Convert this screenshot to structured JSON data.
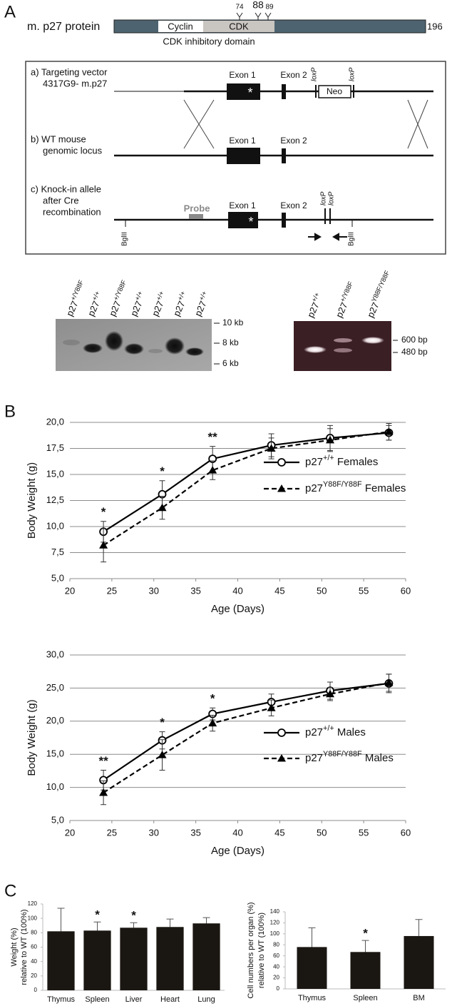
{
  "panel_labels": [
    "A",
    "B",
    "C"
  ],
  "protein": {
    "label": "m. p27 protein",
    "length": "196",
    "domains": [
      "Cyclin",
      "CDK"
    ],
    "domain_caption": "CDK inhibitory domain",
    "sites": [
      "74",
      "88",
      "89"
    ]
  },
  "constructs": {
    "rows": [
      {
        "label": [
          "a) Targeting vector",
          "4317G9- m.p27"
        ]
      },
      {
        "label": [
          "b)  WT mouse",
          "genomic locus"
        ]
      },
      {
        "label": [
          "c) Knock-in allele",
          "after Cre",
          "recombination"
        ]
      }
    ],
    "exon_labels": [
      "Exon 1",
      "Exon 2"
    ],
    "loxp": "loxP",
    "neo": "Neo",
    "probe": "Probe",
    "site": "BglII",
    "asterisk": "*"
  },
  "southern": {
    "lanes": [
      "p27+/Y88F",
      "p27+/+",
      "p27+/Y88F",
      "p27+/+",
      "p27+/+",
      "p27+/+",
      "p27+/+"
    ],
    "markers": [
      "10 kb",
      "8 kb",
      "6 kb"
    ]
  },
  "pcr": {
    "lanes": [
      "p27+/+",
      "p27+/Y88F",
      "p27Y88F/Y88F"
    ],
    "markers": [
      "600 bp",
      "480 bp"
    ]
  },
  "chart_data": [
    {
      "type": "line",
      "x_label": "Age (Days)",
      "y_label": "Body Weight (g)",
      "x": [
        24,
        31,
        37,
        44,
        51,
        58
      ],
      "xlim": [
        20,
        60
      ],
      "xticks": [
        20,
        25,
        30,
        35,
        40,
        45,
        50,
        55,
        60
      ],
      "ylim": [
        5,
        20
      ],
      "yticks": [
        {
          "value": 5,
          "label": "5,0"
        },
        {
          "value": 7.5,
          "label": "7,5"
        },
        {
          "value": 10,
          "label": "10,0"
        },
        {
          "value": 12.5,
          "label": "12,5"
        },
        {
          "value": 15,
          "label": "15,0"
        },
        {
          "value": 17.5,
          "label": "17,5"
        },
        {
          "value": 20,
          "label": "20,0"
        }
      ],
      "grid": true,
      "legend": "center right",
      "significance": [
        "*",
        "*",
        "**",
        null,
        null,
        null
      ],
      "series": [
        {
          "name": "p27+/+ Females",
          "color": "#000000",
          "marker": "circle",
          "linestyle": "solid",
          "values": [
            9.5,
            13.1,
            16.5,
            17.8,
            18.5,
            19.0
          ],
          "errors": [
            1.0,
            1.3,
            1.2,
            1.1,
            1.2,
            0.7
          ]
        },
        {
          "name": "p27Y88F/Y88F Females",
          "color": "#000000",
          "marker": "triangle",
          "linestyle": "dashed",
          "values": [
            8.2,
            11.8,
            15.4,
            17.5,
            18.3,
            19.1
          ],
          "errors": [
            1.6,
            1.1,
            0.9,
            1.0,
            1.1,
            0.8
          ]
        }
      ]
    },
    {
      "type": "line",
      "x_label": "Age (Days)",
      "y_label": "Body Weight (g)",
      "x": [
        24,
        31,
        37,
        44,
        51,
        58
      ],
      "xlim": [
        20,
        60
      ],
      "xticks": [
        20,
        25,
        30,
        35,
        40,
        45,
        50,
        55,
        60
      ],
      "ylim": [
        5,
        30
      ],
      "yticks": [
        {
          "value": 5,
          "label": "5,0"
        },
        {
          "value": 10,
          "label": "10,0"
        },
        {
          "value": 15,
          "label": "15,0"
        },
        {
          "value": 20,
          "label": "20,0"
        },
        {
          "value": 25,
          "label": "25,0"
        },
        {
          "value": 30,
          "label": "30,0"
        }
      ],
      "grid": true,
      "legend": "lower right",
      "significance": [
        "**",
        "*",
        "*",
        null,
        null,
        null
      ],
      "series": [
        {
          "name": "p27+/+ Males",
          "color": "#000000",
          "marker": "circle",
          "linestyle": "solid",
          "values": [
            11.1,
            17.1,
            21.1,
            22.9,
            24.6,
            25.7
          ],
          "errors": [
            1.5,
            1.3,
            0.9,
            1.2,
            1.3,
            1.4
          ]
        },
        {
          "name": "p27Y88F/Y88F Males",
          "color": "#000000",
          "marker": "triangle",
          "linestyle": "dashed",
          "values": [
            9.2,
            14.9,
            19.7,
            22.0,
            24.1,
            25.8
          ],
          "errors": [
            1.8,
            2.3,
            1.2,
            1.2,
            1.0,
            1.3
          ]
        }
      ]
    },
    {
      "type": "bar",
      "y_label": [
        "Weight (%)",
        "relative to WT (100%)"
      ],
      "categories": [
        "Thymus",
        "Spleen",
        "Liver",
        "Heart",
        "Lung"
      ],
      "values": [
        82,
        83,
        87,
        88,
        93
      ],
      "errors": [
        32,
        12,
        7,
        11,
        8
      ],
      "significance": [
        null,
        "*",
        "*",
        null,
        null
      ],
      "color": "#1a1612",
      "ylim": [
        0,
        120
      ],
      "yticks": [
        0,
        20,
        40,
        60,
        80,
        100,
        120
      ]
    },
    {
      "type": "bar",
      "y_label": [
        "Cell numbers per organ (%)",
        "relative to WT (100%)"
      ],
      "categories": [
        "Thymus",
        "Spleen",
        "BM"
      ],
      "values": [
        76,
        67,
        96
      ],
      "errors": [
        35,
        21,
        30
      ],
      "significance": [
        null,
        "*",
        null
      ],
      "color": "#1a1612",
      "ylim": [
        0,
        140
      ],
      "yticks": [
        0,
        20,
        40,
        60,
        80,
        100,
        120,
        140
      ]
    }
  ]
}
